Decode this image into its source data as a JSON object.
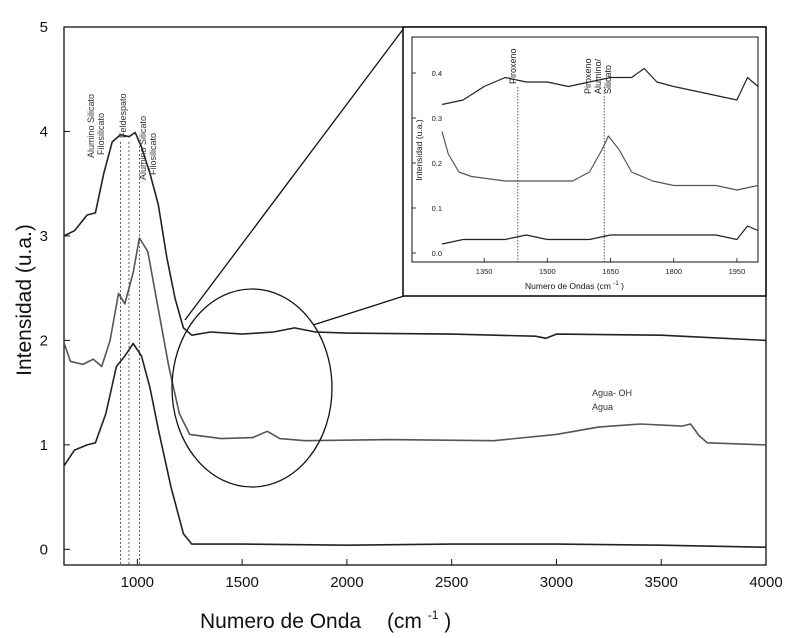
{
  "chart_data": [
    {
      "type": "line",
      "title": "",
      "xlabel": "Numero de Onda",
      "xlabel_unit": "(cm",
      "xlabel_unit_sup": "-1",
      "xlabel_unit_close": ")",
      "ylabel": "Intensidad (u.a.)",
      "xlim": [
        650,
        4000
      ],
      "ylim": [
        -0.15,
        5
      ],
      "xticks": [
        1000,
        1500,
        2000,
        2500,
        3000,
        3500,
        4000
      ],
      "yticks": [
        0,
        1,
        2,
        3,
        4,
        5
      ],
      "grid": false,
      "series": [
        {
          "color": "#222222",
          "points": [
            [
              650,
              3.0
            ],
            [
              700,
              3.05
            ],
            [
              760,
              3.2
            ],
            [
              800,
              3.22
            ],
            [
              840,
              3.6
            ],
            [
              880,
              3.9
            ],
            [
              920,
              3.97
            ],
            [
              960,
              3.95
            ],
            [
              990,
              3.99
            ],
            [
              1020,
              3.85
            ],
            [
              1060,
              3.6
            ],
            [
              1100,
              3.3
            ],
            [
              1140,
              2.8
            ],
            [
              1180,
              2.4
            ],
            [
              1220,
              2.12
            ],
            [
              1260,
              2.05
            ],
            [
              1350,
              2.08
            ],
            [
              1500,
              2.06
            ],
            [
              1650,
              2.08
            ],
            [
              1750,
              2.12
            ],
            [
              1850,
              2.08
            ],
            [
              2000,
              2.07
            ],
            [
              2500,
              2.06
            ],
            [
              2900,
              2.04
            ],
            [
              2950,
              2.02
            ],
            [
              3000,
              2.06
            ],
            [
              3500,
              2.05
            ],
            [
              4000,
              2.0
            ]
          ]
        },
        {
          "color": "#555555",
          "points": [
            [
              650,
              1.98
            ],
            [
              680,
              1.8
            ],
            [
              740,
              1.77
            ],
            [
              790,
              1.82
            ],
            [
              830,
              1.75
            ],
            [
              870,
              2.0
            ],
            [
              910,
              2.45
            ],
            [
              940,
              2.35
            ],
            [
              980,
              2.65
            ],
            [
              1010,
              2.98
            ],
            [
              1050,
              2.85
            ],
            [
              1100,
              2.3
            ],
            [
              1150,
              1.75
            ],
            [
              1200,
              1.3
            ],
            [
              1250,
              1.1
            ],
            [
              1400,
              1.06
            ],
            [
              1550,
              1.07
            ],
            [
              1620,
              1.13
            ],
            [
              1680,
              1.06
            ],
            [
              1800,
              1.04
            ],
            [
              2200,
              1.05
            ],
            [
              2700,
              1.04
            ],
            [
              3000,
              1.1
            ],
            [
              3200,
              1.17
            ],
            [
              3400,
              1.2
            ],
            [
              3600,
              1.18
            ],
            [
              3640,
              1.2
            ],
            [
              3680,
              1.09
            ],
            [
              3720,
              1.02
            ],
            [
              4000,
              1.0
            ]
          ]
        },
        {
          "color": "#222222",
          "points": [
            [
              650,
              0.8
            ],
            [
              700,
              0.95
            ],
            [
              760,
              1.0
            ],
            [
              800,
              1.02
            ],
            [
              850,
              1.3
            ],
            [
              900,
              1.75
            ],
            [
              940,
              1.85
            ],
            [
              980,
              1.97
            ],
            [
              1020,
              1.85
            ],
            [
              1060,
              1.55
            ],
            [
              1100,
              1.15
            ],
            [
              1160,
              0.6
            ],
            [
              1220,
              0.15
            ],
            [
              1260,
              0.05
            ],
            [
              1500,
              0.05
            ],
            [
              2000,
              0.04
            ],
            [
              2500,
              0.05
            ],
            [
              3000,
              0.05
            ],
            [
              3500,
              0.04
            ],
            [
              4000,
              0.02
            ]
          ]
        }
      ],
      "vlines": [
        920,
        960,
        1010
      ],
      "annotations": [
        "Alumino Silicato",
        "Filosilicato",
        "Feldespato",
        "Alumino Silicato",
        "Filosilicato",
        "Agua- OH",
        "Agua"
      ],
      "inset": {
        "type": "line",
        "xlabel": "Numero de Ondas (cm",
        "xlabel_sup": "-1",
        "xlabel_close": ")",
        "ylabel": "Intensidad (u.a.)",
        "xlim": [
          1250,
          2000
        ],
        "ylim": [
          -0.02,
          0.48
        ],
        "xticks": [
          1350,
          1500,
          1650,
          1800,
          1950
        ],
        "ytick_labels": [
          "0.0",
          "0.1",
          "0.2",
          "0.3",
          "0.4"
        ],
        "ytick_values": [
          0.0,
          0.1,
          0.2,
          0.3,
          0.4
        ],
        "vlines": [
          1430,
          1635
        ],
        "annotations": [
          "Piroxeno",
          "Piroxeno",
          "Alumino/",
          "Silicato"
        ],
        "series": [
          {
            "color": "#222222",
            "points": [
              [
                1250,
                0.33
              ],
              [
                1300,
                0.34
              ],
              [
                1350,
                0.37
              ],
              [
                1400,
                0.39
              ],
              [
                1450,
                0.38
              ],
              [
                1500,
                0.38
              ],
              [
                1550,
                0.37
              ],
              [
                1600,
                0.38
              ],
              [
                1650,
                0.39
              ],
              [
                1700,
                0.39
              ],
              [
                1730,
                0.41
              ],
              [
                1760,
                0.38
              ],
              [
                1800,
                0.37
              ],
              [
                1850,
                0.36
              ],
              [
                1900,
                0.35
              ],
              [
                1950,
                0.34
              ],
              [
                1975,
                0.39
              ],
              [
                2000,
                0.37
              ]
            ]
          },
          {
            "color": "#555555",
            "points": [
              [
                1250,
                0.27
              ],
              [
                1265,
                0.22
              ],
              [
                1290,
                0.18
              ],
              [
                1320,
                0.17
              ],
              [
                1400,
                0.16
              ],
              [
                1500,
                0.16
              ],
              [
                1560,
                0.16
              ],
              [
                1600,
                0.18
              ],
              [
                1630,
                0.23
              ],
              [
                1645,
                0.26
              ],
              [
                1670,
                0.23
              ],
              [
                1700,
                0.18
              ],
              [
                1750,
                0.16
              ],
              [
                1800,
                0.15
              ],
              [
                1900,
                0.15
              ],
              [
                1950,
                0.14
              ],
              [
                2000,
                0.15
              ]
            ]
          },
          {
            "color": "#222222",
            "points": [
              [
                1250,
                0.02
              ],
              [
                1300,
                0.03
              ],
              [
                1400,
                0.03
              ],
              [
                1450,
                0.04
              ],
              [
                1500,
                0.03
              ],
              [
                1600,
                0.03
              ],
              [
                1650,
                0.04
              ],
              [
                1700,
                0.04
              ],
              [
                1800,
                0.04
              ],
              [
                1900,
                0.04
              ],
              [
                1950,
                0.03
              ],
              [
                1975,
                0.06
              ],
              [
                2000,
                0.05
              ]
            ]
          }
        ]
      }
    }
  ]
}
